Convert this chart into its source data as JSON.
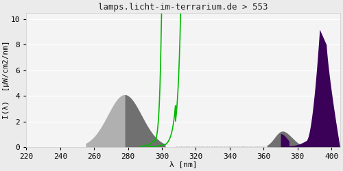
{
  "title": "lamps.licht-im-terrarium.de > 553",
  "xlabel": "λ [nm]",
  "ylabel": "I(λ)  [μW/cm2/nm]",
  "xlim": [
    220,
    405
  ],
  "ylim": [
    0,
    10.5
  ],
  "yticks": [
    0,
    2,
    4,
    6,
    8,
    10
  ],
  "xticks": [
    220,
    240,
    260,
    280,
    300,
    320,
    340,
    360,
    380,
    400
  ],
  "bg_color": "#ebebeb",
  "plot_bg_color": "#f4f4f4",
  "gray_light": "#b0b0b0",
  "gray_dark": "#707070",
  "purple_color": "#3b0058",
  "green_color": "#00bb00",
  "title_fontsize": 9,
  "axis_fontsize": 8,
  "tick_fontsize": 8
}
